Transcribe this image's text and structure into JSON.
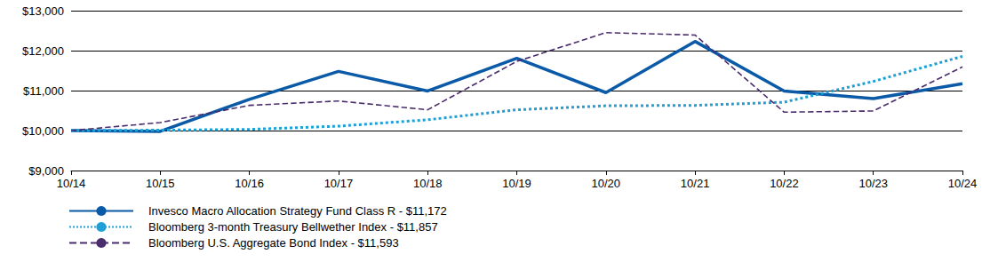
{
  "chart_data": {
    "type": "line",
    "categories": [
      "10/14",
      "10/15",
      "10/16",
      "10/17",
      "10/18",
      "10/19",
      "10/20",
      "10/21",
      "10/22",
      "10/23",
      "10/24"
    ],
    "series": [
      {
        "name": "Invesco Macro Allocation Strategy Fund Class R - $11,172",
        "color": "#0a5aa8",
        "line_style": "solid",
        "marker": "none",
        "values": [
          10000,
          9980,
          10780,
          11480,
          10990,
          11810,
          10950,
          12230,
          10990,
          10800,
          11172
        ]
      },
      {
        "name": "Bloomberg 3-month Treasury Bellwether Index - $11,857",
        "color": "#1ea0d6",
        "line_style": "dotted",
        "marker": "none",
        "values": [
          10000,
          10010,
          10030,
          10110,
          10270,
          10520,
          10620,
          10630,
          10710,
          11230,
          11857
        ]
      },
      {
        "name": "Bloomberg U.S. Aggregate Bond Index - $11,593",
        "color": "#4b2d6e",
        "line_style": "dashed",
        "marker": "none",
        "values": [
          10000,
          10200,
          10630,
          10740,
          10520,
          11730,
          12450,
          12390,
          10460,
          10490,
          11593
        ]
      }
    ],
    "ylim": [
      9000,
      13000
    ],
    "yticks": [
      {
        "value": 9000,
        "label": "$9,000"
      },
      {
        "value": 10000,
        "label": "$10,000"
      },
      {
        "value": 11000,
        "label": "$11,000"
      },
      {
        "value": 12000,
        "label": "$12,000"
      },
      {
        "value": 13000,
        "label": "$13,000"
      }
    ],
    "grid": true,
    "legend": "bottom"
  }
}
